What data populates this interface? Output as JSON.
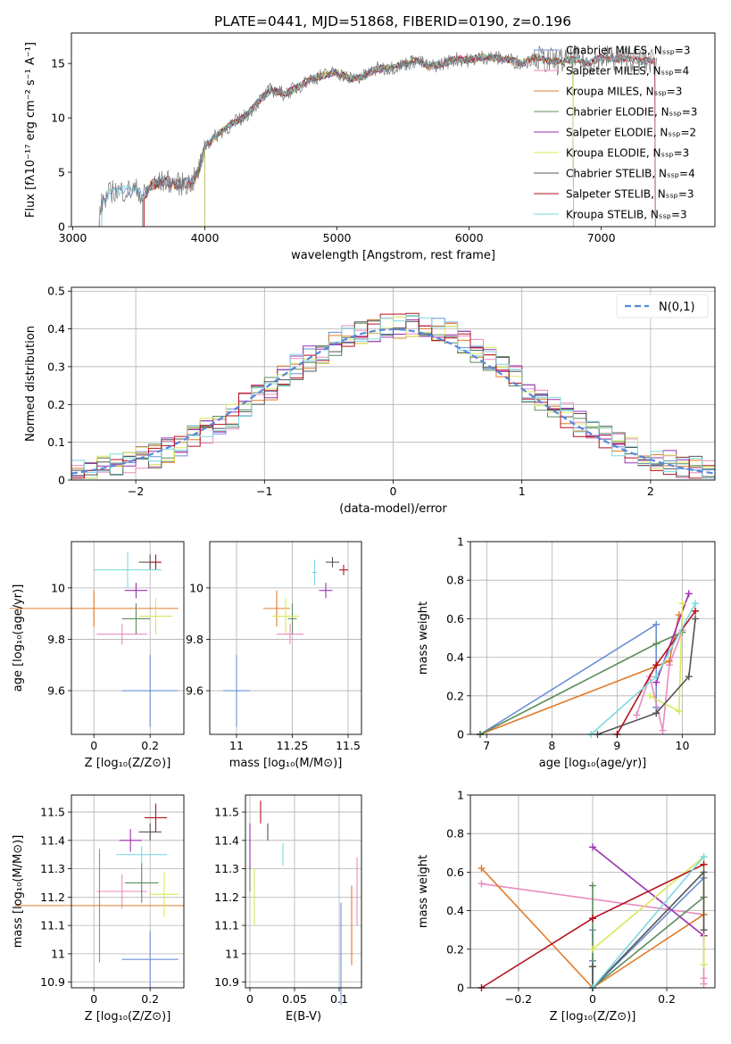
{
  "title": "PLATE=0441, MJD=51868, FIBERID=0190, z=0.196",
  "colors": {
    "Chabrier MILES": "#6a8fd6",
    "Salpeter MILES": "#e98bbf",
    "Kroupa MILES": "#e07b2a",
    "Chabrier ELODIE": "#5e8c5e",
    "Salpeter ELODIE": "#9b30b0",
    "Kroupa ELODIE": "#d8e85a",
    "Chabrier STELIB": "#555555",
    "Salpeter STELIB": "#b3121d",
    "Kroupa STELIB": "#7dd8e0",
    "spectrum": "#777777",
    "normal": "#5588dd",
    "grid": "#b0b0b0"
  },
  "chart_data": [
    {
      "type": "line",
      "name": "spectrum",
      "xlabel": "wavelength [Angstrom, rest frame]",
      "ylabel": "Flux [fλ10⁻¹⁷ erg cm⁻² s⁻¹ A⁻¹]",
      "xlim": [
        2990,
        7860
      ],
      "ylim": [
        0,
        17.8
      ],
      "xticks": [
        3000,
        4000,
        5000,
        6000,
        7000
      ],
      "yticks": [
        0,
        5,
        10,
        15
      ],
      "grid": false,
      "legend_position": "right",
      "legend": [
        "Chabrier MILES, N_SSP=3",
        "Salpeter MILES, N_SSP=4",
        "Kroupa MILES, N_SSP=3",
        "Chabrier ELODIE, N_SSP=3",
        "Salpeter ELODIE, N_SSP=2",
        "Kroupa ELODIE, N_SSP=3",
        "Chabrier STELIB, N_SSP=4",
        "Salpeter STELIB, N_SSP=3",
        "Kroupa STELIB, N_SSP=3"
      ],
      "series": [
        {
          "name": "data",
          "x": [
            3200,
            3220,
            3300,
            3400,
            3500,
            3520,
            3600,
            3700,
            3800,
            3900,
            3950,
            4000,
            4100,
            4200,
            4300,
            4400,
            4500,
            4600,
            4700,
            4800,
            4900,
            5000,
            5100,
            5200,
            5300,
            5400,
            5500,
            5600,
            5700,
            5800,
            5900,
            6000,
            6100,
            6200,
            6300,
            6400,
            6500,
            6600,
            6700,
            6800,
            6900,
            7000,
            7100,
            7200,
            7300,
            7400
          ],
          "y": [
            0.5,
            2.2,
            3.3,
            3.3,
            3.4,
            2.6,
            3.8,
            4.2,
            3.9,
            4.0,
            5.0,
            7.4,
            8.5,
            9.4,
            10.1,
            11.4,
            12.6,
            12.2,
            12.8,
            13.6,
            13.9,
            14.2,
            13.6,
            13.8,
            14.5,
            14.6,
            14.9,
            15.3,
            14.7,
            15.0,
            15.4,
            15.3,
            15.6,
            15.5,
            15.4,
            15.0,
            15.6,
            15.2,
            15.2,
            15.4,
            15.0,
            15.6,
            15.4,
            15.5,
            15.2,
            15.3
          ]
        }
      ]
    },
    {
      "type": "histogram",
      "xlabel": "(data-model)/error",
      "ylabel": "Normed distribution",
      "xlim": [
        -2.5,
        2.5
      ],
      "ylim": [
        0,
        0.51
      ],
      "xticks": [
        -2,
        -1,
        0,
        1,
        2
      ],
      "yticks": [
        0.0,
        0.1,
        0.2,
        0.3,
        0.4,
        0.5
      ],
      "grid": true,
      "legend": [
        "N(0,1)"
      ],
      "legend_position": "top-right",
      "bin_edges": [
        -2.5,
        -2.4,
        -2.3,
        -2.2,
        -2.1,
        -2.0,
        -1.9,
        -1.8,
        -1.7,
        -1.6,
        -1.5,
        -1.4,
        -1.3,
        -1.2,
        -1.1,
        -1.0,
        -0.9,
        -0.8,
        -0.7,
        -0.6,
        -0.5,
        -0.4,
        -0.3,
        -0.2,
        -0.1,
        0.0,
        0.1,
        0.2,
        0.3,
        0.4,
        0.5,
        0.6,
        0.7,
        0.8,
        0.9,
        1.0,
        1.1,
        1.2,
        1.3,
        1.4,
        1.5,
        1.6,
        1.7,
        1.8,
        1.9,
        2.0,
        2.1,
        2.2,
        2.3,
        2.4,
        2.5
      ],
      "envelope": [
        0.02,
        0.025,
        0.03,
        0.035,
        0.045,
        0.055,
        0.065,
        0.08,
        0.095,
        0.11,
        0.13,
        0.15,
        0.17,
        0.2,
        0.22,
        0.24,
        0.27,
        0.3,
        0.32,
        0.34,
        0.36,
        0.38,
        0.39,
        0.4,
        0.405,
        0.41,
        0.41,
        0.405,
        0.4,
        0.39,
        0.37,
        0.345,
        0.32,
        0.3,
        0.27,
        0.24,
        0.215,
        0.19,
        0.17,
        0.15,
        0.13,
        0.11,
        0.095,
        0.08,
        0.065,
        0.055,
        0.045,
        0.035,
        0.03,
        0.025
      ],
      "normal": {
        "mu": 0,
        "sigma": 1
      }
    },
    {
      "type": "errorbar",
      "xlabel": "Z [log₁₀(Z/Z⊙)]",
      "ylabel": "age  [log₁₀(age/yr)]",
      "xlim": [
        -0.08,
        0.32
      ],
      "ylim": [
        9.43,
        10.18
      ],
      "xticks": [
        0.0,
        0.2
      ],
      "yticks": [
        9.6,
        9.8,
        10.0
      ],
      "grid": true,
      "points": [
        {
          "name": "Chabrier MILES",
          "x": 0.2,
          "y": 9.6,
          "xerr": 0.1,
          "yerr": 0.14
        },
        {
          "name": "Salpeter MILES",
          "x": 0.1,
          "y": 9.82,
          "xerr": 0.09,
          "yerr": 0.04
        },
        {
          "name": "Kroupa MILES",
          "x": 0.0,
          "y": 9.92,
          "xerr": 0.3,
          "yerr": 0.07
        },
        {
          "name": "Chabrier ELODIE",
          "x": 0.15,
          "y": 9.88,
          "xerr": 0.05,
          "yerr": 0.06
        },
        {
          "name": "Salpeter ELODIE",
          "x": 0.15,
          "y": 9.99,
          "xerr": 0.04,
          "yerr": 0.03
        },
        {
          "name": "Kroupa ELODIE",
          "x": 0.22,
          "y": 9.89,
          "xerr": 0.06,
          "yerr": 0.07
        },
        {
          "name": "Chabrier STELIB",
          "x": 0.2,
          "y": 10.1,
          "xerr": 0.04,
          "yerr": 0.03
        },
        {
          "name": "Salpeter STELIB",
          "x": 0.22,
          "y": 10.1,
          "xerr": 0.02,
          "yerr": 0.03
        },
        {
          "name": "Kroupa STELIB",
          "x": 0.12,
          "y": 10.07,
          "xerr": 0.12,
          "yerr": 0.07
        }
      ]
    },
    {
      "type": "errorbar",
      "xlabel": "mass [log₁₀(M/M⊙)]",
      "ylabel": "",
      "xlim": [
        10.88,
        11.56
      ],
      "ylim": [
        9.43,
        10.18
      ],
      "xticks": [
        11.0,
        11.25,
        11.5
      ],
      "yticks": [
        9.6,
        9.8,
        10.0
      ],
      "grid": true,
      "points": [
        {
          "name": "Chabrier MILES",
          "x": 11.0,
          "y": 9.6,
          "xerr": 0.06,
          "yerr": 0.14
        },
        {
          "name": "Salpeter MILES",
          "x": 11.24,
          "y": 9.82,
          "xerr": 0.06,
          "yerr": 0.04
        },
        {
          "name": "Kroupa MILES",
          "x": 11.18,
          "y": 9.92,
          "xerr": 0.06,
          "yerr": 0.07
        },
        {
          "name": "Chabrier ELODIE",
          "x": 11.25,
          "y": 9.88,
          "xerr": 0.02,
          "yerr": 0.06
        },
        {
          "name": "Salpeter ELODIE",
          "x": 11.4,
          "y": 9.99,
          "xerr": 0.03,
          "yerr": 0.03
        },
        {
          "name": "Kroupa ELODIE",
          "x": 11.22,
          "y": 9.89,
          "xerr": 0.06,
          "yerr": 0.07
        },
        {
          "name": "Chabrier STELIB",
          "x": 11.43,
          "y": 10.1,
          "xerr": 0.03,
          "yerr": 0.02
        },
        {
          "name": "Salpeter STELIB",
          "x": 11.48,
          "y": 10.07,
          "xerr": 0.02,
          "yerr": 0.02
        },
        {
          "name": "Kroupa STELIB",
          "x": 11.35,
          "y": 10.06,
          "xerr": 0.01,
          "yerr": 0.05
        }
      ]
    },
    {
      "type": "line",
      "xlabel": "age  [log₁₀(age/yr)]",
      "ylabel": "mass weight",
      "xlim": [
        6.75,
        10.5
      ],
      "ylim": [
        0,
        1.0
      ],
      "xticks": [
        7,
        8,
        9,
        10
      ],
      "yticks": [
        0.0,
        0.2,
        0.4,
        0.6,
        0.8,
        1.0
      ],
      "grid": true,
      "series": [
        {
          "name": "Chabrier MILES",
          "x": [
            6.9,
            9.6,
            9.6,
            9.6
          ],
          "y": [
            0.0,
            0.57,
            0.3,
            0.14
          ]
        },
        {
          "name": "Salpeter MILES",
          "x": [
            9.3,
            9.5,
            9.7,
            9.8,
            10.0
          ],
          "y": [
            0.1,
            0.3,
            0.02,
            0.36,
            0.54
          ]
        },
        {
          "name": "Kroupa MILES",
          "x": [
            6.9,
            9.8,
            9.95
          ],
          "y": [
            0.0,
            0.38,
            0.62
          ]
        },
        {
          "name": "Chabrier ELODIE",
          "x": [
            6.9,
            9.6,
            10.0
          ],
          "y": [
            0.0,
            0.47,
            0.53
          ]
        },
        {
          "name": "Salpeter ELODIE",
          "x": [
            9.6,
            10.1
          ],
          "y": [
            0.27,
            0.73
          ]
        },
        {
          "name": "Kroupa ELODIE",
          "x": [
            9.5,
            9.95,
            10.0
          ],
          "y": [
            0.2,
            0.12,
            0.68
          ]
        },
        {
          "name": "Chabrier STELIB",
          "x": [
            8.7,
            9.6,
            10.1,
            10.2
          ],
          "y": [
            0.0,
            0.11,
            0.3,
            0.6
          ]
        },
        {
          "name": "Salpeter STELIB",
          "x": [
            9.0,
            9.6,
            10.2
          ],
          "y": [
            0.0,
            0.36,
            0.64
          ]
        },
        {
          "name": "Kroupa STELIB",
          "x": [
            8.6,
            9.6,
            10.2
          ],
          "y": [
            0.0,
            0.3,
            0.68
          ]
        }
      ]
    },
    {
      "type": "errorbar",
      "xlabel": "Z [log₁₀(Z/Z⊙)]",
      "ylabel": "mass [log₁₀(M/M⊙)]",
      "xlim": [
        -0.08,
        0.32
      ],
      "ylim": [
        10.88,
        11.56
      ],
      "xticks": [
        0.0,
        0.2
      ],
      "yticks": [
        10.9,
        11.0,
        11.1,
        11.2,
        11.3,
        11.4,
        11.5
      ],
      "grid": true,
      "points": [
        {
          "name": "Chabrier MILES",
          "x": 0.2,
          "y": 10.98,
          "xerr": 0.1,
          "yerr": 0.1
        },
        {
          "name": "Salpeter MILES",
          "x": 0.1,
          "y": 11.22,
          "xerr": 0.09,
          "yerr": 0.06
        },
        {
          "name": "Kroupa MILES",
          "x": 0.02,
          "y": 11.17,
          "xerr": 0.3,
          "yerr": 0.2
        },
        {
          "name": "Chabrier ELODIE",
          "x": 0.17,
          "y": 11.25,
          "xerr": 0.06,
          "yerr": 0.07
        },
        {
          "name": "Salpeter ELODIE",
          "x": 0.13,
          "y": 11.4,
          "xerr": 0.04,
          "yerr": 0.04
        },
        {
          "name": "Kroupa ELODIE",
          "x": 0.25,
          "y": 11.21,
          "xerr": 0.05,
          "yerr": 0.08
        },
        {
          "name": "Chabrier STELIB",
          "x": 0.2,
          "y": 11.43,
          "xerr": 0.04,
          "yerr": 0.03
        },
        {
          "name": "Salpeter STELIB",
          "x": 0.22,
          "y": 11.48,
          "xerr": 0.04,
          "yerr": 0.05
        },
        {
          "name": "Kroupa STELIB",
          "x": 0.17,
          "y": 11.35,
          "xerr": 0.09,
          "yerr": 0.03
        }
      ]
    },
    {
      "type": "errorbar",
      "xlabel": "E(B-V)",
      "ylabel": "",
      "xlim": [
        -0.005,
        0.125
      ],
      "ylim": [
        10.88,
        11.56
      ],
      "xticks": [
        0.0,
        0.05,
        0.1
      ],
      "yticks": [
        10.9,
        11.0,
        11.1,
        11.2,
        11.3,
        11.4,
        11.5
      ],
      "grid": true,
      "points": [
        {
          "name": "Chabrier MILES",
          "x": 0.102,
          "y": 11.0,
          "xerr": 0.0,
          "yerr": 0.18
        },
        {
          "name": "Salpeter MILES",
          "x": 0.12,
          "y": 11.22,
          "xerr": 0.0,
          "yerr": 0.12
        },
        {
          "name": "Kroupa MILES",
          "x": 0.114,
          "y": 11.1,
          "xerr": 0.0,
          "yerr": 0.14
        },
        {
          "name": "Chabrier ELODIE",
          "x": 0.0,
          "y": 11.27,
          "xerr": 0.0,
          "yerr": 0.05
        },
        {
          "name": "Salpeter ELODIE",
          "x": 0.0,
          "y": 11.38,
          "xerr": 0.0,
          "yerr": 0.08
        },
        {
          "name": "Kroupa ELODIE",
          "x": 0.005,
          "y": 11.2,
          "xerr": 0.0,
          "yerr": 0.1
        },
        {
          "name": "Chabrier STELIB",
          "x": 0.02,
          "y": 11.43,
          "xerr": 0.0,
          "yerr": 0.03
        },
        {
          "name": "Salpeter STELIB",
          "x": 0.012,
          "y": 11.5,
          "xerr": 0.0,
          "yerr": 0.04
        },
        {
          "name": "Kroupa STELIB",
          "x": 0.037,
          "y": 11.35,
          "xerr": 0.0,
          "yerr": 0.04
        }
      ]
    },
    {
      "type": "line",
      "xlabel": "Z [log₁₀(Z/Z⊙)]",
      "ylabel": "mass weight",
      "xlim": [
        -0.33,
        0.33
      ],
      "ylim": [
        0,
        1.0
      ],
      "xticks": [
        -0.2,
        0.0,
        0.2
      ],
      "yticks": [
        0.0,
        0.2,
        0.4,
        0.6,
        0.8,
        1.0
      ],
      "grid": true,
      "series": [
        {
          "name": "Chabrier MILES",
          "x": [
            0.0,
            0.0,
            0.0,
            0.3
          ],
          "y": [
            0.3,
            0.14,
            0.0,
            0.57
          ]
        },
        {
          "name": "Salpeter MILES",
          "x": [
            -0.3,
            0.3,
            0.3,
            0.3
          ],
          "y": [
            0.54,
            0.38,
            0.05,
            0.02
          ]
        },
        {
          "name": "Kroupa MILES",
          "x": [
            -0.3,
            0.0,
            0.3
          ],
          "y": [
            0.62,
            0.0,
            0.38
          ]
        },
        {
          "name": "Chabrier ELODIE",
          "x": [
            0.0,
            0.0,
            0.3
          ],
          "y": [
            0.53,
            0.0,
            0.47
          ]
        },
        {
          "name": "Salpeter ELODIE",
          "x": [
            0.0,
            0.3
          ],
          "y": [
            0.73,
            0.27
          ]
        },
        {
          "name": "Kroupa ELODIE",
          "x": [
            0.0,
            0.3,
            0.3
          ],
          "y": [
            0.2,
            0.68,
            0.12
          ]
        },
        {
          "name": "Chabrier STELIB",
          "x": [
            0.0,
            0.0,
            0.3,
            0.3
          ],
          "y": [
            0.11,
            0.0,
            0.6,
            0.3
          ]
        },
        {
          "name": "Salpeter STELIB",
          "x": [
            -0.3,
            0.0,
            0.3
          ],
          "y": [
            0.0,
            0.36,
            0.64
          ]
        },
        {
          "name": "Kroupa STELIB",
          "x": [
            0.0,
            0.3
          ],
          "y": [
            0.0,
            0.68
          ]
        }
      ]
    }
  ]
}
